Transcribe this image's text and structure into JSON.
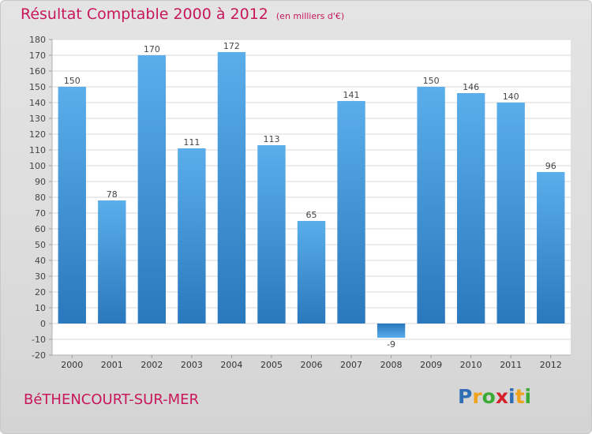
{
  "title": "Résultat Comptable 2000 à 2012",
  "unit_note": "(en milliers d'€)",
  "city": "BéTHENCOURT-SUR-MER",
  "logo": {
    "letters": [
      "P",
      "r",
      "o",
      "x",
      "i",
      "t",
      "i"
    ],
    "colors": [
      "#2f6db5",
      "#f0a21a",
      "#3aaa35",
      "#d6212d",
      "#2f6db5",
      "#f0a21a",
      "#3aaa35"
    ]
  },
  "colors": {
    "bar": "#4a9fe0",
    "accent": "#c8185a"
  },
  "chart_data": {
    "type": "bar",
    "categories": [
      "2000",
      "2001",
      "2002",
      "2003",
      "2004",
      "2005",
      "2006",
      "2007",
      "2008",
      "2009",
      "2010",
      "2011",
      "2012"
    ],
    "values": [
      150,
      78,
      170,
      111,
      172,
      113,
      65,
      141,
      -9,
      150,
      146,
      140,
      96
    ],
    "data_labels": [
      "150",
      "78",
      "170",
      "111",
      "172",
      "113",
      "65",
      "141",
      "-9",
      "150",
      "146",
      "140",
      "96"
    ],
    "ylim": [
      -20,
      180
    ],
    "yticks": [
      -20,
      -10,
      0,
      10,
      20,
      30,
      40,
      50,
      60,
      70,
      80,
      90,
      100,
      110,
      120,
      130,
      140,
      150,
      160,
      170,
      180
    ],
    "grid": true
  }
}
